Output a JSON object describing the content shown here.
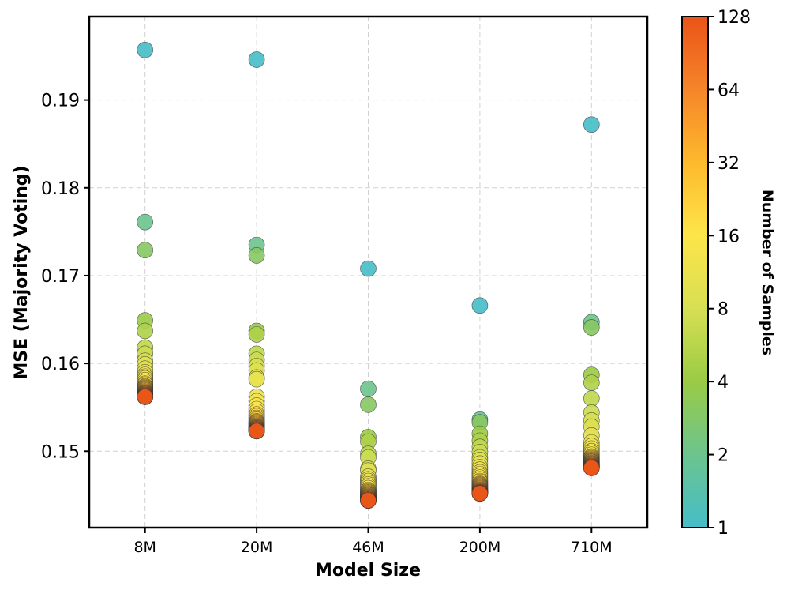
{
  "chart_data": {
    "type": "scatter",
    "title": "",
    "xlabel": "Model Size",
    "ylabel": "MSE (Majority Voting)",
    "categories": [
      "8M",
      "20M",
      "46M",
      "200M",
      "710M"
    ],
    "ylim": [
      0.1413,
      0.1995
    ],
    "yticks": [
      0.15,
      0.16,
      0.17,
      0.18,
      0.19
    ],
    "ytick_labels": [
      "0.15",
      "0.16",
      "0.17",
      "0.18",
      "0.19"
    ],
    "grid": true,
    "colorbar": {
      "label": "Number of Samples",
      "scale": "log2",
      "min": 1,
      "max": 128,
      "ticks": [
        1,
        2,
        4,
        8,
        16,
        32,
        64,
        128
      ],
      "tick_labels": [
        "1",
        "2",
        "4",
        "8",
        "16",
        "32",
        "64",
        "128"
      ],
      "colors": [
        "#45bdc8",
        "#6cc48e",
        "#9acb45",
        "#d7df52",
        "#fde54a",
        "#fdb92c",
        "#f5852a",
        "#ea5418"
      ]
    },
    "samples": [
      1,
      2,
      3,
      4,
      5,
      6,
      7,
      8,
      9,
      10,
      11,
      12,
      13,
      14,
      15,
      16,
      18,
      20,
      22,
      24,
      26,
      28,
      30,
      32,
      36,
      40,
      44,
      48,
      52,
      56,
      60,
      64,
      72,
      80,
      88,
      96,
      104,
      112,
      120,
      128
    ],
    "series": [
      {
        "category": "8M",
        "y": [
          0.1957,
          0.1761,
          0.1729,
          0.1649,
          0.1637,
          0.1618,
          0.1611,
          0.1603,
          0.1599,
          0.1594,
          0.159,
          0.1587,
          0.1585,
          0.1583,
          0.1581,
          0.1579,
          0.1577,
          0.1576,
          0.1574,
          0.1573,
          0.1572,
          0.1571,
          0.157,
          0.1569,
          0.1568,
          0.1567,
          0.1567,
          0.1566,
          0.1566,
          0.1565,
          0.1565,
          0.1564,
          0.1564,
          0.1563,
          0.1563,
          0.1563,
          0.1562,
          0.1562,
          0.1562,
          0.1562
        ]
      },
      {
        "category": "20M",
        "y": [
          0.1946,
          0.1735,
          0.1723,
          0.1637,
          0.1633,
          0.1611,
          0.1604,
          0.1597,
          0.1592,
          0.1584,
          0.1582,
          0.1562,
          0.1557,
          0.1552,
          0.1548,
          0.1545,
          0.1542,
          0.154,
          0.1538,
          0.1536,
          0.1534,
          0.1533,
          0.1532,
          0.1531,
          0.153,
          0.1529,
          0.1528,
          0.1527,
          0.1527,
          0.1526,
          0.1526,
          0.1525,
          0.1525,
          0.1524,
          0.1524,
          0.1524,
          0.1523,
          0.1523,
          0.1523,
          0.1523
        ]
      },
      {
        "category": "46M",
        "y": [
          0.1708,
          0.1571,
          0.1553,
          0.1516,
          0.1511,
          0.1497,
          0.1493,
          0.148,
          0.1478,
          0.1471,
          0.1468,
          0.1466,
          0.1464,
          0.1462,
          0.146,
          0.1458,
          0.1456,
          0.1455,
          0.1454,
          0.1453,
          0.1452,
          0.1451,
          0.145,
          0.145,
          0.1449,
          0.1448,
          0.1448,
          0.1447,
          0.1447,
          0.1446,
          0.1446,
          0.1445,
          0.1445,
          0.1445,
          0.1444,
          0.1444,
          0.1444,
          0.1444,
          0.1444,
          0.1444
        ]
      },
      {
        "category": "200M",
        "y": [
          0.1666,
          0.1536,
          0.1533,
          0.152,
          0.1512,
          0.1505,
          0.1499,
          0.1493,
          0.149,
          0.1486,
          0.1482,
          0.1479,
          0.1476,
          0.1474,
          0.1472,
          0.147,
          0.1468,
          0.1466,
          0.1465,
          0.1463,
          0.1462,
          0.1461,
          0.146,
          0.1459,
          0.1458,
          0.1457,
          0.1456,
          0.1456,
          0.1455,
          0.1455,
          0.1454,
          0.1454,
          0.1453,
          0.1453,
          0.1453,
          0.1452,
          0.1452,
          0.1452,
          0.1452,
          0.1452
        ]
      },
      {
        "category": "710M",
        "y": [
          0.1872,
          0.1647,
          0.1641,
          0.1587,
          0.1578,
          0.156,
          0.1544,
          0.1535,
          0.1528,
          0.1518,
          0.151,
          0.1506,
          0.1503,
          0.15,
          0.1498,
          0.1496,
          0.1494,
          0.1493,
          0.1492,
          0.1491,
          0.149,
          0.1489,
          0.1488,
          0.1488,
          0.1487,
          0.1486,
          0.1486,
          0.1485,
          0.1485,
          0.1484,
          0.1484,
          0.1483,
          0.1483,
          0.1483,
          0.1482,
          0.1482,
          0.1482,
          0.1482,
          0.1481,
          0.1481
        ]
      }
    ]
  }
}
